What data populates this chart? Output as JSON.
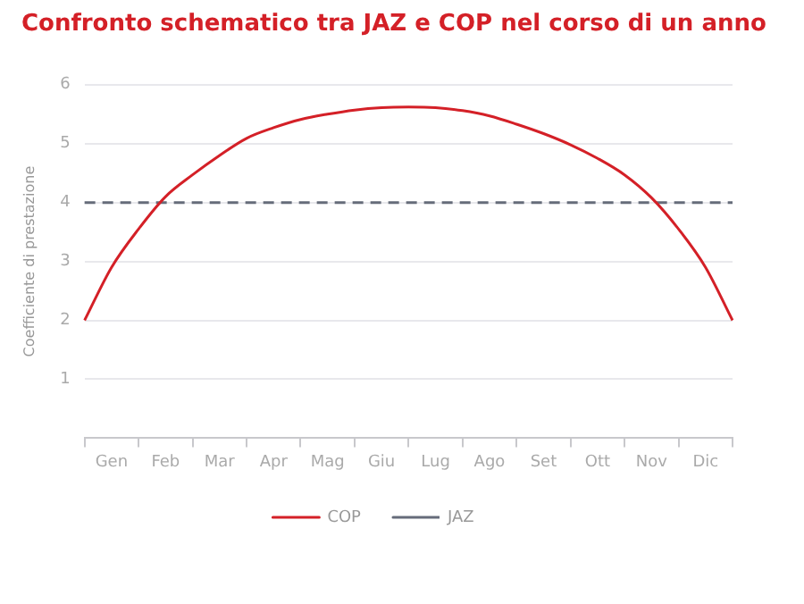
{
  "chart_data": {
    "type": "line",
    "title": "Confronto schematico tra JAZ e COP nel corso di un anno",
    "ylabel": "Coefficiente di prestazione",
    "categories": [
      null,
      "Gen",
      null,
      "Feb",
      null,
      "Mar",
      null,
      "Apr",
      null,
      "Mag",
      null,
      "Giu",
      null,
      "Lug",
      null,
      "Ago",
      null,
      "Set",
      null,
      "Ott",
      null,
      "Nov",
      null,
      "Dic",
      null
    ],
    "ylim": [
      0,
      6
    ],
    "yticks": [
      1,
      2,
      3,
      4,
      5,
      6
    ],
    "grid": "y",
    "legend": "bottom",
    "marker": "none",
    "series": [
      {
        "name": "COP",
        "color": "#d42027",
        "line_style": "solid",
        "values": [
          2,
          2.9,
          3.55,
          4.1,
          4.47,
          4.8,
          5.09,
          5.27,
          5.41,
          5.5,
          5.57,
          5.61,
          5.62,
          5.61,
          5.56,
          5.47,
          5.33,
          5.17,
          4.98,
          4.75,
          4.47,
          4.08,
          3.55,
          2.9,
          2
        ]
      },
      {
        "name": "JAZ",
        "color": "#666c7a",
        "line_style": "dashed",
        "values": [
          4,
          4,
          4,
          4,
          4,
          4,
          4,
          4,
          4,
          4,
          4,
          4,
          4,
          4,
          4,
          4,
          4,
          4,
          4,
          4,
          4,
          4,
          4,
          4,
          4
        ]
      }
    ]
  }
}
